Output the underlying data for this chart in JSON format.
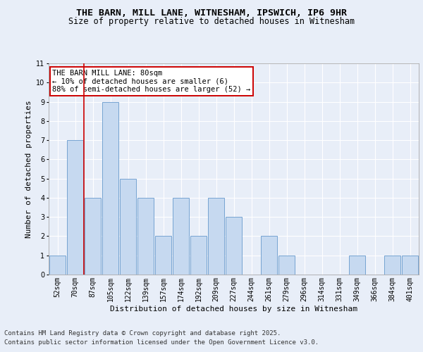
{
  "title_line1": "THE BARN, MILL LANE, WITNESHAM, IPSWICH, IP6 9HR",
  "title_line2": "Size of property relative to detached houses in Witnesham",
  "xlabel": "Distribution of detached houses by size in Witnesham",
  "ylabel": "Number of detached properties",
  "categories": [
    "52sqm",
    "70sqm",
    "87sqm",
    "105sqm",
    "122sqm",
    "139sqm",
    "157sqm",
    "174sqm",
    "192sqm",
    "209sqm",
    "227sqm",
    "244sqm",
    "261sqm",
    "279sqm",
    "296sqm",
    "314sqm",
    "331sqm",
    "349sqm",
    "366sqm",
    "384sqm",
    "401sqm"
  ],
  "values": [
    1,
    7,
    4,
    9,
    5,
    4,
    2,
    4,
    2,
    4,
    3,
    0,
    2,
    1,
    0,
    0,
    0,
    1,
    0,
    1,
    1
  ],
  "bar_color": "#c6d9f0",
  "bar_edge_color": "#6699cc",
  "ref_line_x": 1.5,
  "ref_line_color": "#cc0000",
  "annotation_title": "THE BARN MILL LANE: 80sqm",
  "annotation_line2": "← 10% of detached houses are smaller (6)",
  "annotation_line3": "88% of semi-detached houses are larger (52) →",
  "annotation_box_edge": "#cc0000",
  "annotation_box_face": "#ffffff",
  "ylim": [
    0,
    11
  ],
  "yticks": [
    0,
    1,
    2,
    3,
    4,
    5,
    6,
    7,
    8,
    9,
    10,
    11
  ],
  "footer_line1": "Contains HM Land Registry data © Crown copyright and database right 2025.",
  "footer_line2": "Contains public sector information licensed under the Open Government Licence v3.0.",
  "background_color": "#e8eef8",
  "plot_bg_color": "#e8eef8",
  "grid_color": "#ffffff",
  "title_fontsize": 9.5,
  "subtitle_fontsize": 8.5,
  "axis_label_fontsize": 8,
  "tick_fontsize": 7,
  "footer_fontsize": 6.5,
  "annotation_fontsize": 7.5
}
